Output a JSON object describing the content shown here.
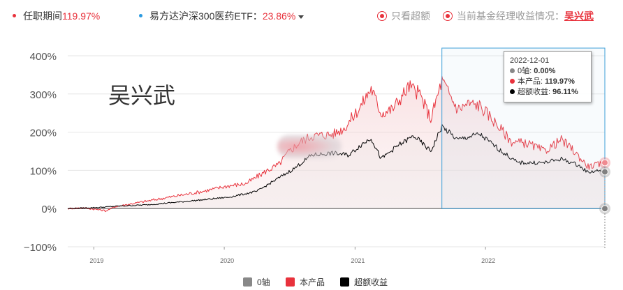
{
  "header": {
    "tenure_label": "任职期间",
    "tenure_value": "119.97%",
    "benchmark_label": "易方达沪深300医药ETF：",
    "benchmark_value": "23.86%",
    "only_excess_label": "只看超额",
    "current_manager_label": "当前基金经理收益情况：",
    "manager_name": "吴兴武",
    "colors": {
      "accent": "#e8323c",
      "benchmark_dot": "#2a9ae0"
    }
  },
  "watermark": "吴兴武",
  "tooltip": {
    "date": "2022-12-01",
    "rows": [
      {
        "label": "0轴: ",
        "value": "0.00%",
        "color": "#888888"
      },
      {
        "label": "本产品: ",
        "value": "119.97%",
        "color": "#e8323c"
      },
      {
        "label": "超额收益: ",
        "value": "96.11%",
        "color": "#000000"
      }
    ]
  },
  "legend": [
    {
      "name": "0轴",
      "color": "#888888"
    },
    {
      "name": "本产品",
      "color": "#e8323c"
    },
    {
      "name": "超额收益",
      "color": "#000000"
    }
  ],
  "chart_data": {
    "type": "line",
    "x_tick_labels": [
      "2019",
      "2020",
      "2021",
      "2022"
    ],
    "y_tick_labels": [
      "400%",
      "300%",
      "200%",
      "100%",
      "0%",
      "−100%"
    ],
    "ylim": [
      -100,
      400
    ],
    "y_ticks": [
      400,
      300,
      200,
      100,
      0,
      -100
    ],
    "x_range": [
      "2018-10-20",
      "2022-12-01"
    ],
    "x_ticks": [
      "2019-01-01",
      "2020-01-01",
      "2021-01-01",
      "2022-01-01"
    ],
    "grid": true,
    "legend_position": "bottom",
    "highlight_range": [
      "2021-09-01",
      "2022-12-01"
    ],
    "series": [
      {
        "name": "0轴",
        "color": "#888888",
        "points": [
          [
            "2018-10-20",
            0
          ],
          [
            "2022-12-01",
            0
          ]
        ]
      },
      {
        "name": "本产品",
        "color": "#e8323c",
        "points": [
          [
            "2018-10-20",
            0
          ],
          [
            "2018-12-01",
            2
          ],
          [
            "2019-01-15",
            -3
          ],
          [
            "2019-02-05",
            -6
          ],
          [
            "2019-03-01",
            5
          ],
          [
            "2019-05-01",
            15
          ],
          [
            "2019-08-01",
            30
          ],
          [
            "2019-11-01",
            45
          ],
          [
            "2020-01-15",
            60
          ],
          [
            "2020-03-01",
            65
          ],
          [
            "2020-05-01",
            100
          ],
          [
            "2020-06-01",
            115
          ],
          [
            "2020-07-01",
            150
          ],
          [
            "2020-08-01",
            175
          ],
          [
            "2020-09-01",
            190
          ],
          [
            "2020-11-01",
            195
          ],
          [
            "2020-12-01",
            210
          ],
          [
            "2021-01-15",
            265
          ],
          [
            "2021-02-15",
            315
          ],
          [
            "2021-03-15",
            250
          ],
          [
            "2021-04-15",
            260
          ],
          [
            "2021-06-01",
            320
          ],
          [
            "2021-07-01",
            300
          ],
          [
            "2021-08-01",
            235
          ],
          [
            "2021-09-01",
            335
          ],
          [
            "2021-10-15",
            260
          ],
          [
            "2021-11-15",
            275
          ],
          [
            "2021-12-15",
            270
          ],
          [
            "2022-01-15",
            240
          ],
          [
            "2022-03-15",
            175
          ],
          [
            "2022-05-01",
            170
          ],
          [
            "2022-06-15",
            150
          ],
          [
            "2022-08-01",
            180
          ],
          [
            "2022-09-01",
            155
          ],
          [
            "2022-10-15",
            110
          ],
          [
            "2022-11-15",
            115
          ],
          [
            "2022-12-01",
            119.97
          ]
        ]
      },
      {
        "name": "超额收益",
        "color": "#000000",
        "points": [
          [
            "2018-10-20",
            0
          ],
          [
            "2019-01-15",
            3
          ],
          [
            "2019-03-01",
            6
          ],
          [
            "2019-06-01",
            10
          ],
          [
            "2019-10-01",
            20
          ],
          [
            "2020-01-15",
            30
          ],
          [
            "2020-04-01",
            45
          ],
          [
            "2020-06-01",
            80
          ],
          [
            "2020-07-15",
            105
          ],
          [
            "2020-09-01",
            140
          ],
          [
            "2020-11-01",
            145
          ],
          [
            "2020-12-15",
            140
          ],
          [
            "2021-01-15",
            165
          ],
          [
            "2021-02-15",
            185
          ],
          [
            "2021-03-15",
            130
          ],
          [
            "2021-05-01",
            165
          ],
          [
            "2021-06-15",
            190
          ],
          [
            "2021-08-01",
            150
          ],
          [
            "2021-09-01",
            215
          ],
          [
            "2021-10-15",
            180
          ],
          [
            "2021-12-15",
            195
          ],
          [
            "2022-02-15",
            150
          ],
          [
            "2022-04-01",
            120
          ],
          [
            "2022-06-15",
            120
          ],
          [
            "2022-08-01",
            130
          ],
          [
            "2022-09-15",
            115
          ],
          [
            "2022-10-15",
            95
          ],
          [
            "2022-11-15",
            100
          ],
          [
            "2022-12-01",
            96.11
          ]
        ]
      }
    ]
  }
}
